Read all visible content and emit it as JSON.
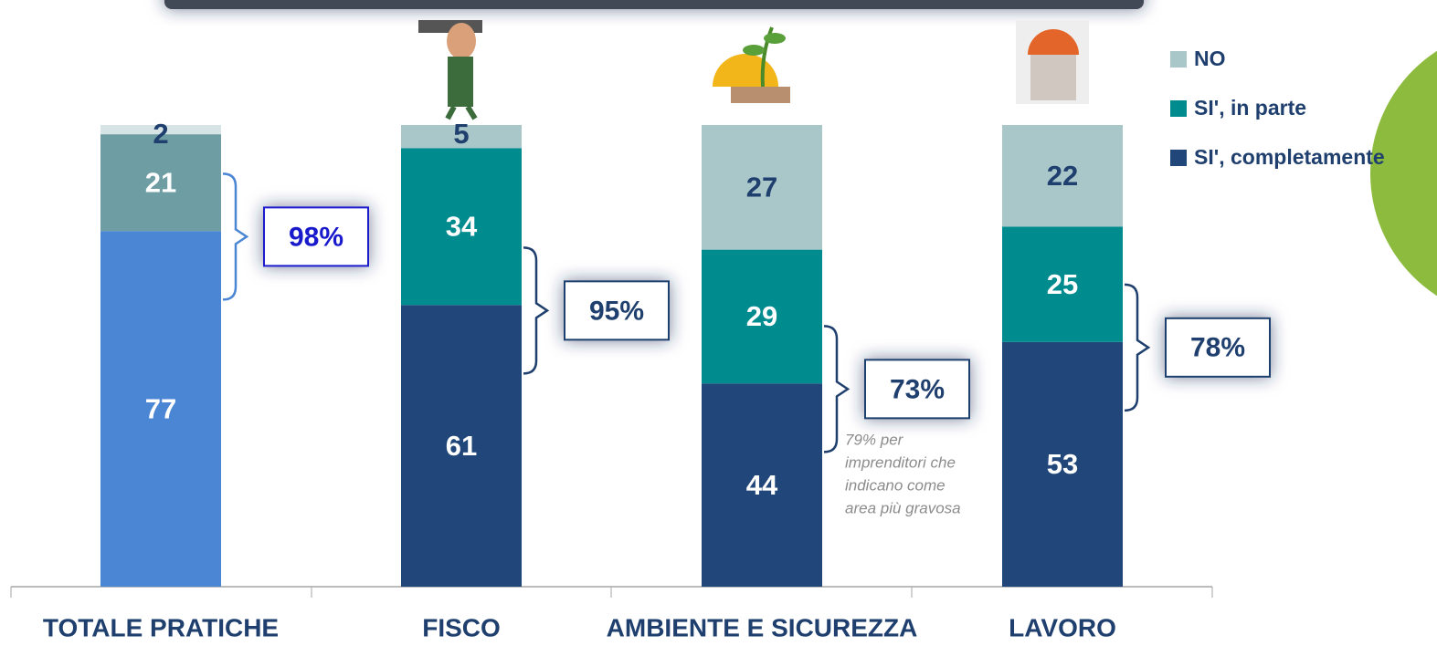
{
  "chart_data": {
    "type": "stacked_bar",
    "categories": [
      "TOTALE PRATICHE",
      "FISCO",
      "AMBIENTE E SICUREZZA",
      "LAVORO"
    ],
    "series": [
      {
        "name": "SI', completamente",
        "color": "#21477a",
        "point_colors": [
          "#4a86d4",
          "#21477a",
          "#21477a",
          "#21477a"
        ],
        "label_color": "#ffffff",
        "values": [
          77,
          61,
          44,
          53
        ]
      },
      {
        "name": "SI', in parte",
        "color": "#008b8f",
        "point_colors": [
          "#6e9ea3",
          "#008b8f",
          "#008b8f",
          "#008b8f"
        ],
        "label_color": "#ffffff",
        "values": [
          21,
          34,
          29,
          25
        ]
      },
      {
        "name": "NO",
        "color": "#a9c6c9",
        "point_colors": [
          "#d6e4e6",
          "#a9c6c9",
          "#a9c6c9",
          "#a9c6c9"
        ],
        "label_color": "#1f3f6e",
        "values": [
          2,
          5,
          27,
          22
        ]
      }
    ],
    "ylim": [
      0,
      100
    ],
    "bracket_labels": [
      "98%",
      "95%",
      "73%",
      "78%"
    ],
    "bracket_colors": [
      "#1a1acd",
      "#1f3f6e",
      "#1f3f6e",
      "#1f3f6e"
    ],
    "note": [
      "79% per",
      "imprenditori che",
      "indicano come",
      "area più gravosa"
    ]
  }
}
